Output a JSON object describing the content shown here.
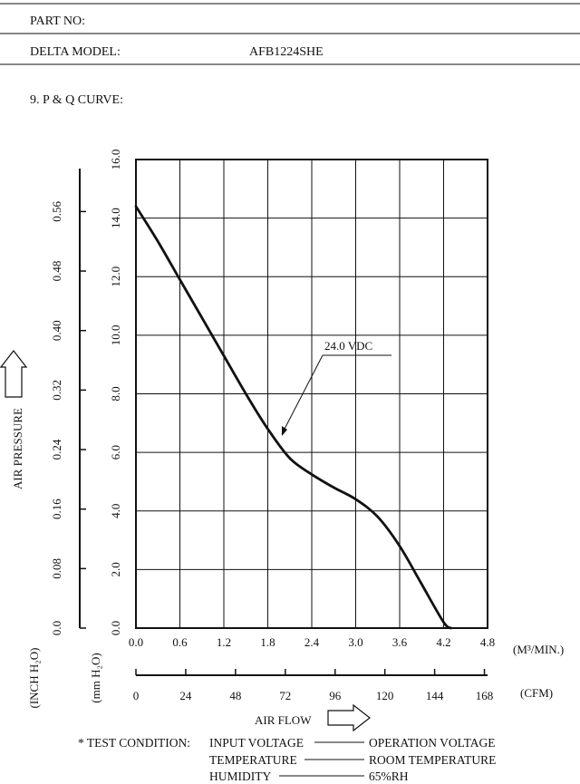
{
  "header": {
    "part_no_label": "PART NO:",
    "part_no_value": "",
    "model_label": "DELTA MODEL:",
    "model_value": "AFB1224SHE",
    "section_title": "9. P & Q CURVE:"
  },
  "chart_data": {
    "type": "line",
    "title": "9. P & Q CURVE:",
    "xlabel": "AIR FLOW",
    "ylabel": "AIR PRESSURE",
    "x_unit_primary": "(M³/MIN.)",
    "x_unit_secondary": "(CFM)",
    "y_unit_primary": "(mm H₂O)",
    "y_unit_secondary": "(INCH H₂O)",
    "xlim": [
      0,
      4.8
    ],
    "ylim": [
      0,
      16
    ],
    "x_ticks": [
      "0.0",
      "0.6",
      "1.2",
      "1.8",
      "2.4",
      "3.0",
      "3.6",
      "4.2",
      "4.8"
    ],
    "x2_ticks": [
      "0",
      "24",
      "48",
      "72",
      "96",
      "120",
      "144",
      "168"
    ],
    "y_ticks": [
      "0.0",
      "2.0",
      "4.0",
      "6.0",
      "8.0",
      "10.0",
      "12.0",
      "14.0",
      "16.0"
    ],
    "y2_ticks": [
      "0.0",
      "0.08",
      "0.16",
      "0.24",
      "0.32",
      "0.40",
      "0.48",
      "0.56"
    ],
    "grid": true,
    "series": [
      {
        "name": "24.0 VDC",
        "x": [
          0.0,
          0.3,
          0.6,
          0.9,
          1.2,
          1.5,
          1.8,
          2.1,
          2.4,
          2.7,
          3.0,
          3.3,
          3.6,
          3.9,
          4.2,
          4.3
        ],
        "y": [
          14.4,
          13.2,
          11.9,
          10.6,
          9.3,
          8.0,
          6.8,
          5.8,
          5.25,
          4.8,
          4.4,
          3.8,
          2.8,
          1.5,
          0.2,
          0.0
        ]
      }
    ]
  },
  "test_condition": {
    "label": "* TEST CONDITION:",
    "rows": [
      {
        "name": "INPUT VOLTAGE",
        "value": "OPERATION VOLTAGE"
      },
      {
        "name": "TEMPERATURE",
        "value": "ROOM TEMPERATURE"
      },
      {
        "name": "HUMIDITY",
        "value": "65%RH"
      }
    ]
  }
}
